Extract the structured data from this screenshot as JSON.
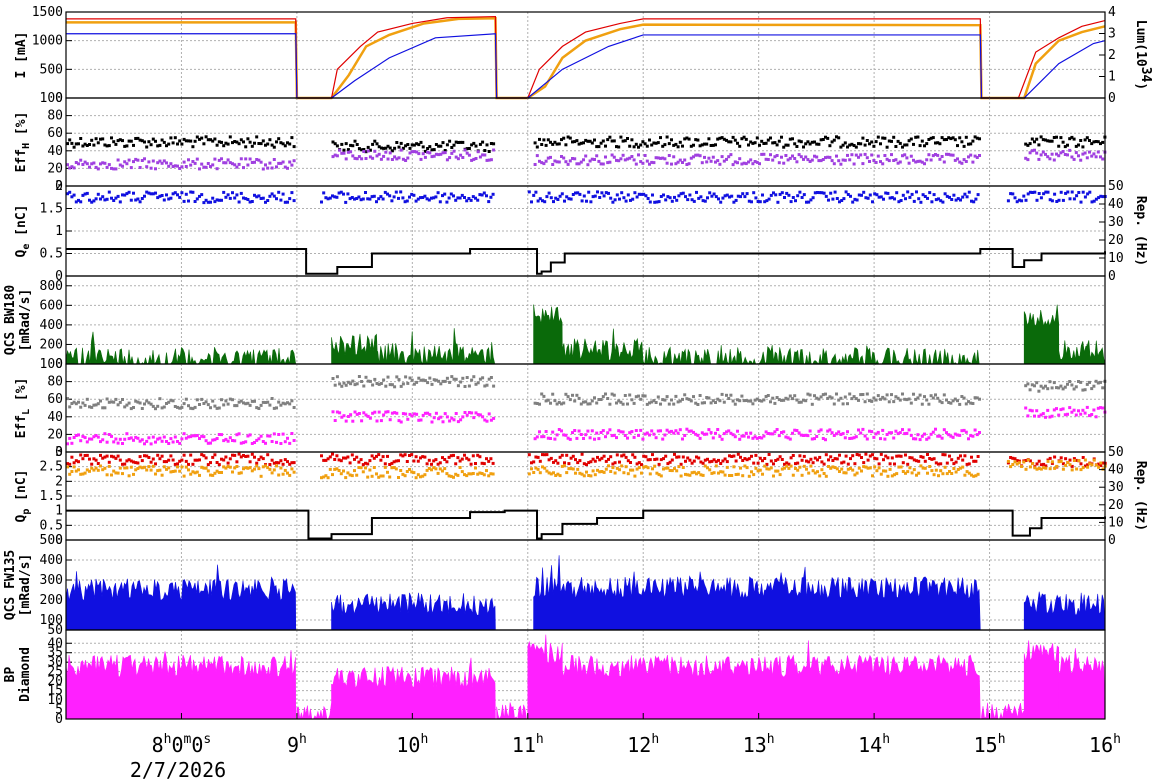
{
  "colors": {
    "orange": "#f0a010",
    "red": "#e00000",
    "blue": "#1010e0",
    "black": "#000000",
    "purple": "#a040e0",
    "green": "#0a6a0a",
    "gray": "#808080",
    "magenta": "#ff20ff",
    "grid": "#b0b0b0"
  },
  "chart_data": [
    {
      "type": "line",
      "title": "",
      "ylabel": "I [mA]",
      "y2label": "Lum(10^34)",
      "ylim": [
        0,
        1500
      ],
      "y2lim": [
        0,
        4
      ],
      "yticks": [
        "0",
        "500",
        "1000",
        "1500"
      ],
      "y2ticks": [
        "0",
        "1",
        "2",
        "3",
        "4"
      ],
      "series": [
        {
          "color": "orange",
          "x": [
            7.0,
            8.99,
            9.0,
            9.3,
            9.45,
            9.6,
            9.8,
            10.1,
            10.4,
            10.72,
            10.73,
            11.0,
            11.15,
            11.3,
            11.5,
            11.8,
            12.0,
            14.92,
            14.93,
            15.3,
            15.4,
            15.6,
            15.8,
            16.0
          ],
          "y": [
            1320,
            1320,
            0,
            0,
            400,
            900,
            1100,
            1300,
            1380,
            1390,
            0,
            0,
            200,
            700,
            1000,
            1200,
            1280,
            1270,
            0,
            0,
            600,
            1000,
            1150,
            1250
          ]
        },
        {
          "color": "red",
          "x": [
            7.0,
            8.99,
            9.0,
            9.3,
            9.35,
            9.55,
            9.7,
            10.0,
            10.3,
            10.72,
            10.73,
            11.0,
            11.1,
            11.3,
            11.5,
            11.8,
            12.0,
            14.92,
            14.93,
            15.25,
            15.4,
            15.6,
            15.8,
            16.0
          ],
          "y": [
            1380,
            1380,
            0,
            0,
            500,
            900,
            1150,
            1300,
            1400,
            1420,
            0,
            0,
            500,
            900,
            1150,
            1300,
            1380,
            1380,
            0,
            0,
            800,
            1050,
            1250,
            1350
          ]
        },
        {
          "color": "blue",
          "x": [
            7.0,
            8.99,
            9.0,
            9.3,
            9.5,
            9.8,
            10.2,
            10.72,
            10.73,
            11.0,
            11.3,
            11.7,
            12.0,
            14.92,
            14.93,
            15.3,
            15.6,
            15.9,
            16.0
          ],
          "y": [
            1120,
            1120,
            0,
            0,
            300,
            700,
            1050,
            1120,
            0,
            0,
            500,
            900,
            1100,
            1100,
            0,
            0,
            600,
            950,
            1000
          ]
        }
      ]
    },
    {
      "type": "scatter",
      "ylabel": "Eff_H [%]",
      "ylim": [
        0,
        100
      ],
      "yticks": [
        "0",
        "20",
        "40",
        "60",
        "80",
        "100"
      ],
      "series": [
        {
          "color": "black",
          "segments": [
            [
              7.0,
              8.98,
              50
            ],
            [
              9.3,
              10.7,
              45
            ],
            [
              11.05,
              14.9,
              50
            ],
            [
              15.3,
              16.0,
              50
            ]
          ]
        },
        {
          "color": "purple",
          "segments": [
            [
              7.0,
              8.98,
              25
            ],
            [
              9.3,
              10.7,
              35
            ],
            [
              11.05,
              14.9,
              30
            ],
            [
              15.3,
              16.0,
              35
            ]
          ]
        }
      ]
    },
    {
      "type": "scatter",
      "ylabel": "Q_e [nC]",
      "y2label": "Rep. (Hz)",
      "ylim": [
        0,
        2
      ],
      "y2lim": [
        0,
        50
      ],
      "yticks": [
        "0",
        "0.5",
        "1",
        "1.5",
        "2"
      ],
      "y2ticks": [
        "0",
        "10",
        "20",
        "30",
        "40",
        "50"
      ],
      "series": [
        {
          "color": "blue",
          "segments": [
            [
              7.0,
              8.98,
              1.75
            ],
            [
              9.2,
              10.7,
              1.75
            ],
            [
              11.0,
              14.9,
              1.75
            ],
            [
              15.15,
              16.0,
              1.75
            ]
          ]
        },
        {
          "color": "black",
          "type": "step",
          "x": [
            7.0,
            9.0,
            9.08,
            9.35,
            9.65,
            10.2,
            10.5,
            11.08,
            11.12,
            11.2,
            11.32,
            14.92,
            15.2,
            15.3,
            15.45,
            16.0
          ],
          "y": [
            0.6,
            0.6,
            0.05,
            0.2,
            0.5,
            0.5,
            0.6,
            0.05,
            0.1,
            0.3,
            0.5,
            0.6,
            0.2,
            0.35,
            0.5,
            0.55
          ]
        }
      ]
    },
    {
      "type": "area",
      "ylabel": "QCS BW180",
      "ylabel2": "[mRad/s]",
      "ylim": [
        0,
        900
      ],
      "yticks": [
        "0",
        "200",
        "400",
        "600",
        "800"
      ],
      "series": [
        {
          "color": "green",
          "segments": [
            [
              7.0,
              8.99,
              60
            ],
            [
              9.3,
              9.7,
              200
            ],
            [
              9.7,
              10.72,
              100
            ],
            [
              11.05,
              11.3,
              500
            ],
            [
              11.3,
              12.0,
              150
            ],
            [
              12.0,
              14.92,
              60
            ],
            [
              15.3,
              15.6,
              500
            ],
            [
              15.6,
              16.0,
              150
            ]
          ]
        }
      ]
    },
    {
      "type": "scatter",
      "ylabel": "Eff_L [%]",
      "ylim": [
        0,
        100
      ],
      "yticks": [
        "0",
        "20",
        "40",
        "60",
        "80",
        "100"
      ],
      "series": [
        {
          "color": "gray",
          "segments": [
            [
              7.0,
              8.98,
              55
            ],
            [
              9.3,
              10.7,
              80
            ],
            [
              11.05,
              14.9,
              60
            ],
            [
              15.3,
              16.0,
              75
            ]
          ]
        },
        {
          "color": "magenta",
          "segments": [
            [
              7.0,
              8.98,
              15
            ],
            [
              9.3,
              10.7,
              40
            ],
            [
              11.05,
              14.9,
              20
            ],
            [
              15.3,
              16.0,
              45
            ]
          ]
        }
      ]
    },
    {
      "type": "scatter",
      "ylabel": "Q_p [nC]",
      "y2label": "Rep. (Hz)",
      "ylim": [
        0,
        3
      ],
      "y2lim": [
        0,
        50
      ],
      "yticks": [
        "0",
        "0.5",
        "1",
        "1.5",
        "2",
        "2.5",
        "3"
      ],
      "y2ticks": [
        "0",
        "10",
        "20",
        "30",
        "40",
        "50"
      ],
      "series": [
        {
          "color": "red",
          "segments": [
            [
              7.0,
              8.98,
              2.75
            ],
            [
              9.2,
              10.7,
              2.75
            ],
            [
              11.0,
              14.9,
              2.75
            ],
            [
              15.15,
              16.0,
              2.65
            ]
          ]
        },
        {
          "color": "orange",
          "segments": [
            [
              7.0,
              8.98,
              2.35
            ],
            [
              9.2,
              10.7,
              2.3
            ],
            [
              11.0,
              14.9,
              2.35
            ],
            [
              15.15,
              16.0,
              2.55
            ]
          ]
        },
        {
          "color": "black",
          "type": "step",
          "x": [
            7.0,
            9.08,
            9.1,
            9.3,
            9.65,
            10.5,
            10.8,
            11.08,
            11.12,
            11.3,
            11.6,
            12.0,
            14.92,
            15.2,
            15.35,
            15.45,
            16.0
          ],
          "y": [
            1.0,
            1.0,
            0.05,
            0.2,
            0.75,
            0.95,
            1.0,
            0.05,
            0.2,
            0.55,
            0.75,
            1.0,
            1.0,
            0.15,
            0.4,
            0.75,
            0.8
          ]
        }
      ]
    },
    {
      "type": "area",
      "ylabel": "QCS FW135",
      "ylabel2": "[mRad/s]",
      "ylim": [
        50,
        500
      ],
      "yticks": [
        "50",
        "100",
        "200",
        "300",
        "400",
        "500"
      ],
      "series": [
        {
          "color": "blue",
          "segments": [
            [
              7.0,
              8.99,
              250
            ],
            [
              9.3,
              10.72,
              180
            ],
            [
              11.05,
              14.92,
              260
            ],
            [
              15.3,
              16.0,
              180
            ]
          ]
        }
      ]
    },
    {
      "type": "area",
      "ylabel": "BP",
      "ylabel2": "Diamond",
      "ylim": [
        0,
        47
      ],
      "yticks": [
        "0",
        "5",
        "10",
        "15",
        "20",
        "25",
        "30",
        "35",
        "40"
      ],
      "series": [
        {
          "color": "magenta",
          "segments": [
            [
              7.0,
              8.99,
              28
            ],
            [
              9.0,
              9.3,
              3
            ],
            [
              9.3,
              10.72,
              22
            ],
            [
              10.73,
              11.0,
              3
            ],
            [
              11.0,
              11.3,
              35
            ],
            [
              11.3,
              14.92,
              28
            ],
            [
              14.93,
              15.3,
              3
            ],
            [
              15.3,
              15.6,
              35
            ],
            [
              15.6,
              16.0,
              28
            ]
          ]
        }
      ]
    }
  ],
  "xaxis": {
    "xlim": [
      7.0,
      16.0
    ],
    "ticks": [
      {
        "x": 8,
        "label": "8",
        "label2": "0",
        "label3": "0"
      },
      {
        "x": 9,
        "label": "9"
      },
      {
        "x": 10,
        "label": "10"
      },
      {
        "x": 11,
        "label": "11"
      },
      {
        "x": 12,
        "label": "12"
      },
      {
        "x": 13,
        "label": "13"
      },
      {
        "x": 14,
        "label": "14"
      },
      {
        "x": 15,
        "label": "15"
      },
      {
        "x": 16,
        "label": "16"
      }
    ],
    "date_label": "2/7/2026"
  }
}
